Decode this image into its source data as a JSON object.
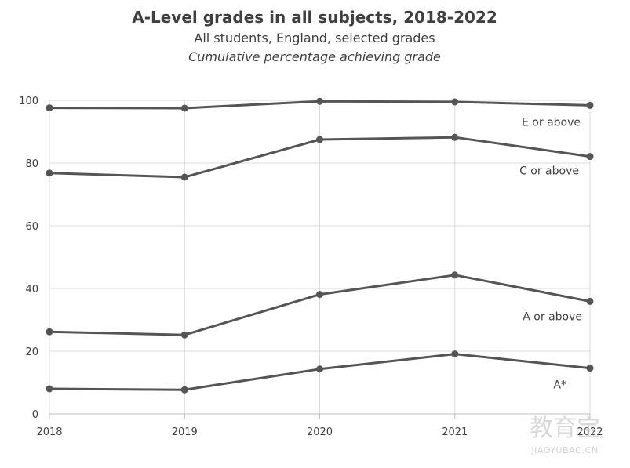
{
  "chart_data": {
    "type": "line",
    "title": "A-Level grades in all subjects, 2018-2022",
    "subtitle": "All students, England, selected grades",
    "subtitle2": "Cumulative percentage achieving grade",
    "x": [
      "2018",
      "2019",
      "2020",
      "2021",
      "2022"
    ],
    "yticks": [
      "0",
      "20",
      "40",
      "60",
      "80",
      "100"
    ],
    "ylim": [
      0,
      100
    ],
    "grid": true,
    "series": [
      {
        "name": "E or above",
        "values": [
          97.6,
          97.5,
          99.7,
          99.5,
          98.4
        ]
      },
      {
        "name": "C or above",
        "values": [
          76.8,
          75.5,
          87.5,
          88.2,
          82.1
        ]
      },
      {
        "name": "A or above",
        "values": [
          26.2,
          25.2,
          38.1,
          44.3,
          35.9
        ]
      },
      {
        "name": "A*",
        "values": [
          8.0,
          7.7,
          14.3,
          19.1,
          14.6
        ]
      }
    ],
    "colors": {
      "line": "#555555",
      "grid": "#d9d9d9",
      "text": "#404040"
    }
  },
  "watermark": {
    "main": "教育宝",
    "sub": "JIAOYUBAO.CN"
  }
}
